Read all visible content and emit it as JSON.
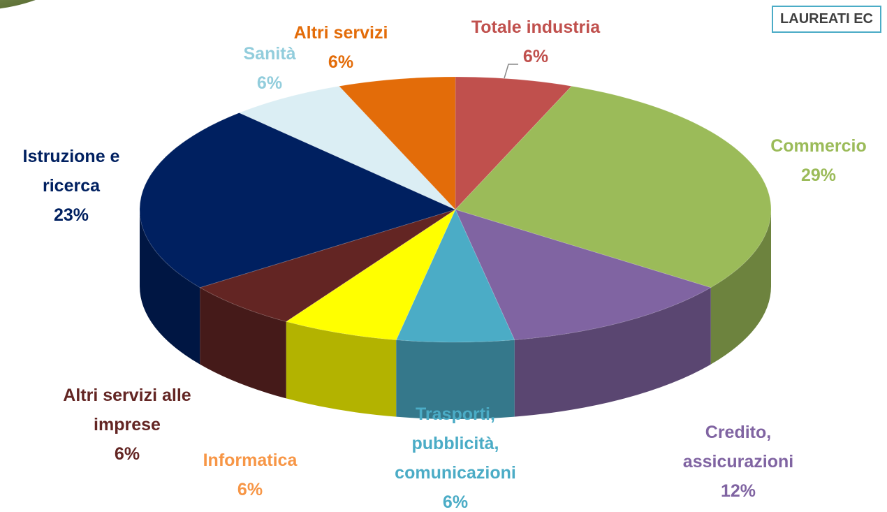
{
  "chart_data": {
    "type": "pie3d",
    "annotation": "LAUREATI EC",
    "categories": [
      "Totale industria",
      "Commercio",
      "Credito, assicurazioni",
      "Trasporti, pubblicità, comunicazioni",
      "Informatica",
      "Altri servizi alle imprese",
      "Istruzione e ricerca",
      "Sanità",
      "Altri servizi"
    ],
    "values": [
      6,
      29,
      12,
      6,
      6,
      6,
      23,
      6,
      6
    ],
    "value_labels": [
      "6%",
      "29%",
      "12%",
      "6%",
      "6%",
      "6%",
      "23%",
      "6%",
      "6%"
    ],
    "colors": [
      "#c0504d",
      "#9bbb59",
      "#8064a2",
      "#4bacc6",
      "#ffff00",
      "#632523",
      "#002060",
      "#dbeef4",
      "#e36c09"
    ],
    "label_colors": [
      "#c0504d",
      "#9bbb59",
      "#8064a2",
      "#4bacc6",
      "#f79646",
      "#632523",
      "#002060",
      "#92cddc",
      "#e36c09"
    ]
  }
}
